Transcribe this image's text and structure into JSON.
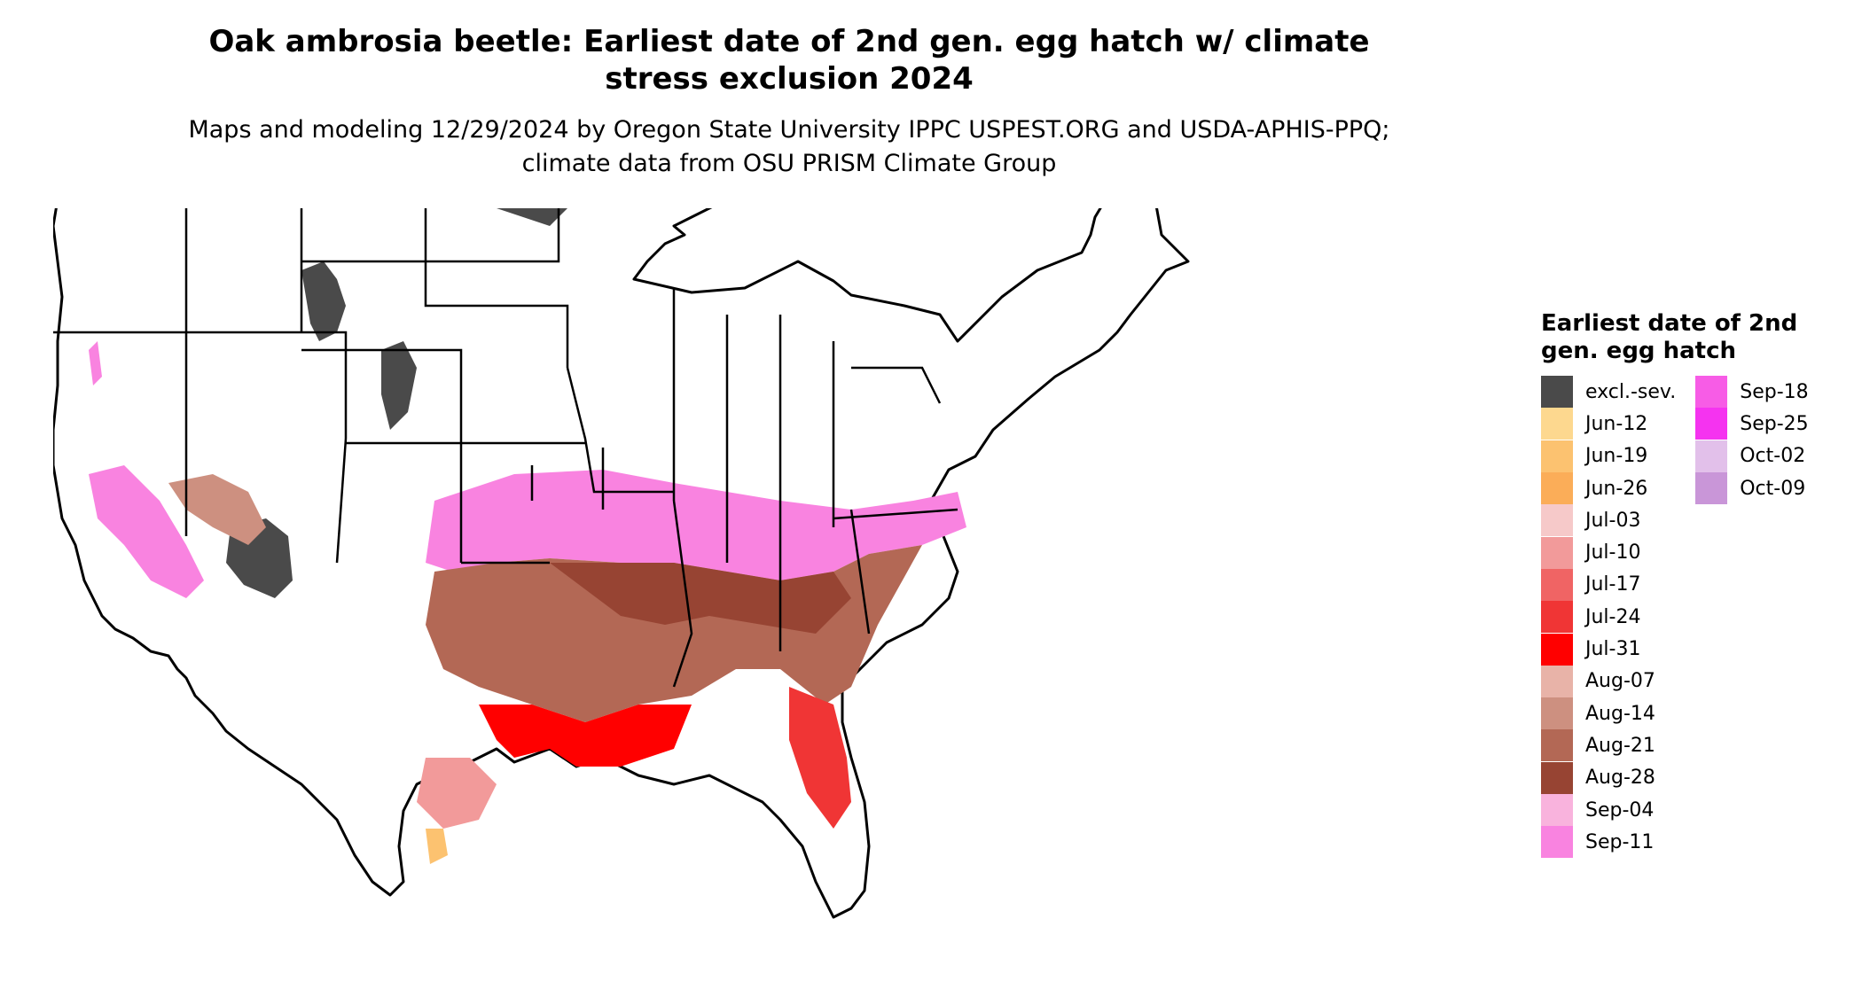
{
  "title": "Oak ambrosia beetle: Earliest date of 2nd gen. egg hatch w/ climate stress exclusion 2024",
  "subtitle": "Maps and modeling 12/29/2024 by Oregon State University IPPC USPEST.ORG and USDA-APHIS-PPQ; climate data from OSU PRISM Climate Group",
  "legend": {
    "title": "Earliest date of 2nd gen. egg hatch",
    "items": [
      {
        "label": "excl.-sev.",
        "color": "#4a4a4a"
      },
      {
        "label": "Jun-12",
        "color": "#fdd88f"
      },
      {
        "label": "Jun-19",
        "color": "#fcc270"
      },
      {
        "label": "Jun-26",
        "color": "#fbad58"
      },
      {
        "label": "Jul-03",
        "color": "#f6c9c9"
      },
      {
        "label": "Jul-10",
        "color": "#f29a9a"
      },
      {
        "label": "Jul-17",
        "color": "#f06464"
      },
      {
        "label": "Jul-24",
        "color": "#f03535"
      },
      {
        "label": "Jul-31",
        "color": "#ff0000"
      },
      {
        "label": "Aug-07",
        "color": "#e8b3a8"
      },
      {
        "label": "Aug-14",
        "color": "#cd9080"
      },
      {
        "label": "Aug-21",
        "color": "#b36855"
      },
      {
        "label": "Aug-28",
        "color": "#974433"
      },
      {
        "label": "Sep-04",
        "color": "#f9b3dd"
      },
      {
        "label": "Sep-11",
        "color": "#f983e0"
      },
      {
        "label": "Sep-18",
        "color": "#f75ce6"
      },
      {
        "label": "Sep-25",
        "color": "#f533f0"
      },
      {
        "label": "Oct-02",
        "color": "#e2c0ea"
      },
      {
        "label": "Oct-09",
        "color": "#c996d8"
      }
    ]
  }
}
